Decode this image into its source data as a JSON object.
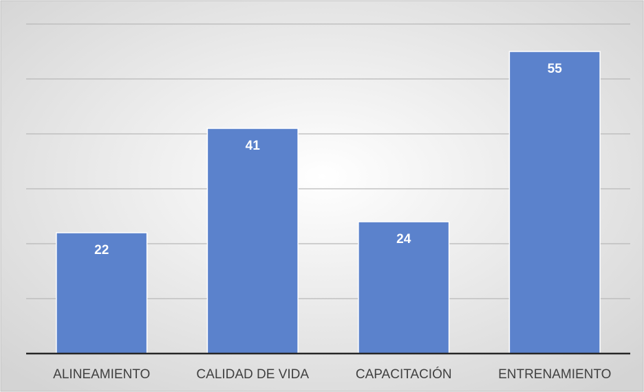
{
  "chart_data": {
    "type": "bar",
    "categories": [
      "ALINEAMIENTO",
      "CALIDAD DE VIDA",
      "CAPACITACIÓN",
      "ENTRENAMIENTO"
    ],
    "values": [
      22,
      41,
      24,
      55
    ],
    "color": "#5b82cc",
    "ylim": [
      0,
      60
    ],
    "yticks": [
      0,
      10,
      20,
      30,
      40,
      50,
      60
    ],
    "grid": true
  }
}
